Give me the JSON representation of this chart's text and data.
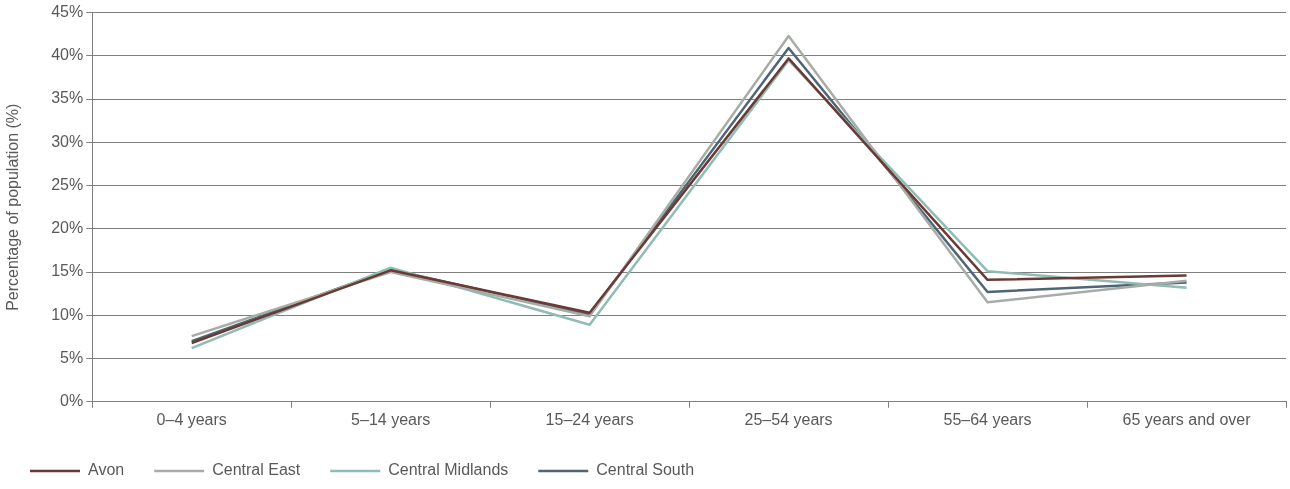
{
  "chart_data": {
    "type": "line",
    "ylabel": "Percentage of population (%)",
    "categories": [
      "0–4 years",
      "5–14 years",
      "15–24 years",
      "25–54 years",
      "55–64 years",
      "65 years and over"
    ],
    "series": [
      {
        "name": "Avon",
        "color": "#6b3a35",
        "values": [
          6.8,
          15.2,
          10.3,
          39.7,
          14.1,
          14.6
        ]
      },
      {
        "name": "Central East",
        "color": "#a8aca6",
        "values": [
          7.6,
          15.0,
          9.9,
          42.3,
          11.5,
          14.0
        ]
      },
      {
        "name": "Central Midlands",
        "color": "#8fbcb5",
        "values": [
          6.2,
          15.5,
          8.9,
          39.5,
          15.1,
          13.2
        ]
      },
      {
        "name": "Central South",
        "color": "#4f6475",
        "values": [
          7.0,
          15.3,
          10.1,
          40.9,
          12.7,
          13.8
        ]
      }
    ],
    "ylim": [
      0,
      45
    ],
    "yticks": [
      {
        "value": 0,
        "label": "0%"
      },
      {
        "value": 5,
        "label": "5%"
      },
      {
        "value": 10,
        "label": "10%"
      },
      {
        "value": 15,
        "label": "15%"
      },
      {
        "value": 20,
        "label": "20%"
      },
      {
        "value": 25,
        "label": "25%"
      },
      {
        "value": 30,
        "label": "30%"
      },
      {
        "value": 35,
        "label": "35%"
      },
      {
        "value": 40,
        "label": "40%"
      },
      {
        "value": 45,
        "label": "45%"
      }
    ],
    "grid": "y",
    "legend": "bottom left",
    "marker": "none",
    "line_style": "solid"
  }
}
